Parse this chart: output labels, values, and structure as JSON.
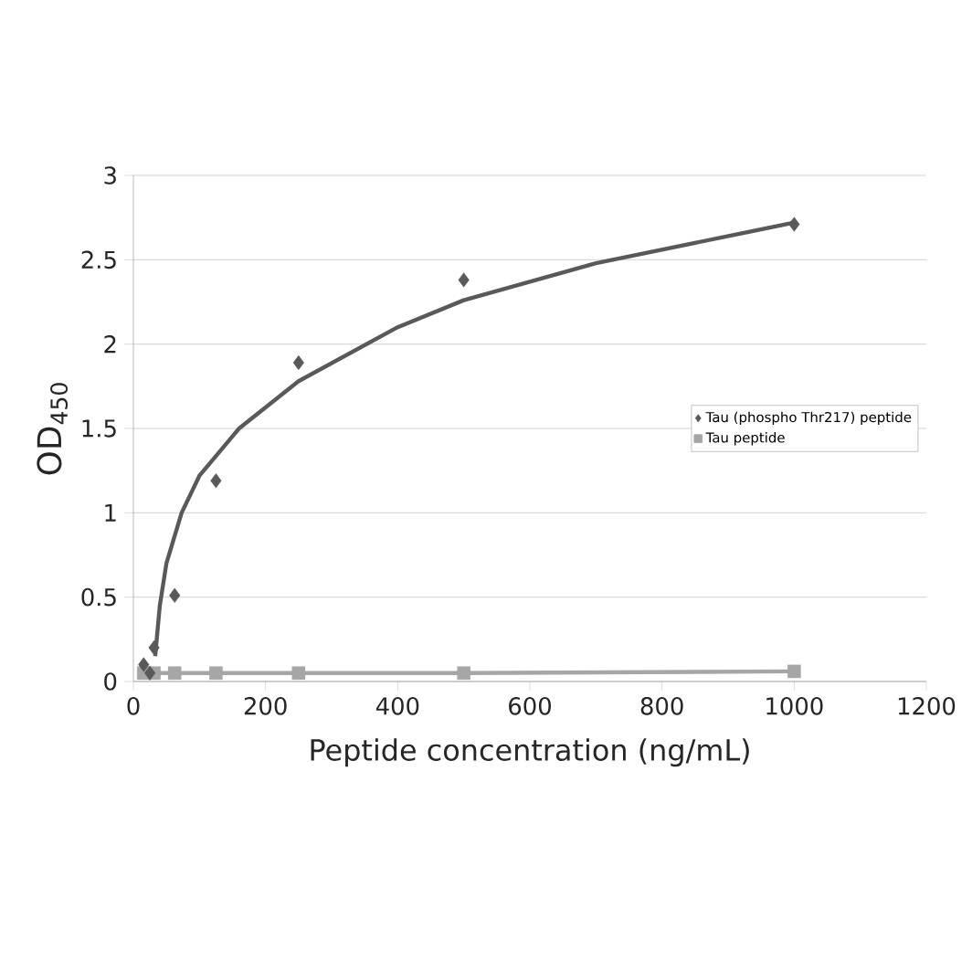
{
  "chart_data": {
    "type": "scatter",
    "xlabel": "Peptide concentration (ng/mL)",
    "ylabel": "OD$_{450}$",
    "xlim": [
      0,
      1200
    ],
    "xticks": [
      0,
      200,
      400,
      600,
      800,
      1000,
      1200
    ],
    "ylim": [
      0,
      3
    ],
    "yticks": [
      0,
      0.5,
      1,
      1.5,
      2,
      2.5,
      3
    ],
    "grid": "y",
    "legend": "right",
    "series": [
      {
        "name": "Tau (phospho Thr217) peptide",
        "marker": "diamond",
        "color": "#595959",
        "x": [
          15.6,
          25,
          31.25,
          62.5,
          125,
          250,
          500,
          1000
        ],
        "values": [
          0.1,
          0.05,
          0.2,
          0.51,
          1.19,
          1.89,
          2.38,
          2.71
        ]
      },
      {
        "name": "Tau peptide",
        "type": "line",
        "marker": "square",
        "color": "#a6a6a6",
        "x": [
          15.6,
          31.25,
          62.5,
          125,
          250,
          500,
          1000
        ],
        "values": [
          0.05,
          0.05,
          0.05,
          0.05,
          0.05,
          0.05,
          0.06
        ]
      },
      {
        "type": "line",
        "marker": "none",
        "color": "#595959",
        "x": [
          33,
          40,
          50,
          73,
          100,
          160,
          250,
          400,
          500,
          700,
          1000
        ],
        "values": [
          0.15,
          0.45,
          0.7,
          1.0,
          1.22,
          1.5,
          1.78,
          2.1,
          2.26,
          2.48,
          2.72
        ]
      }
    ]
  }
}
